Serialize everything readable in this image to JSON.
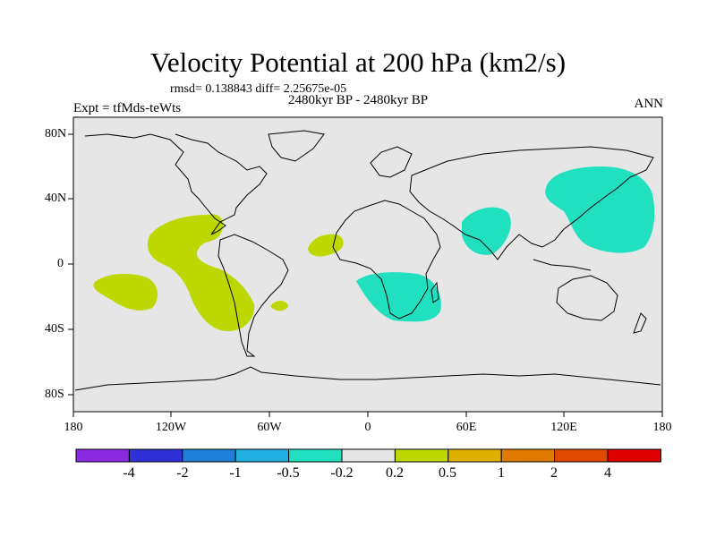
{
  "title": "Velocity Potential at 200 hPa (km2/s)",
  "stats": "rmsd= 0.138843 diff= 2.25675e-05",
  "period": "2480kyr BP - 2480kyr BP",
  "experiment": "Expt = tfMds-teWts",
  "season": "ANN",
  "y_axis_labels": [
    "80N",
    "40N",
    "0",
    "40S",
    "80S"
  ],
  "x_axis_labels": [
    "180",
    "120W",
    "60W",
    "0",
    "60E",
    "120E",
    "180"
  ],
  "colorbar": {
    "colors": [
      "#8a2be2",
      "#3030d8",
      "#1e7fd8",
      "#22b0e0",
      "#20e0c0",
      "#e6e6e6",
      "#bcd800",
      "#e0b000",
      "#e07a00",
      "#e04a00",
      "#e00000"
    ],
    "labels": [
      "-4",
      "-2",
      "-1",
      "-0.5",
      "-0.2",
      "0.2",
      "0.5",
      "1",
      "2",
      "4"
    ]
  },
  "colors": {
    "map_background": "#e6e6e6",
    "positive_contour": "#bcd800",
    "negative_contour": "#20e0c0"
  }
}
